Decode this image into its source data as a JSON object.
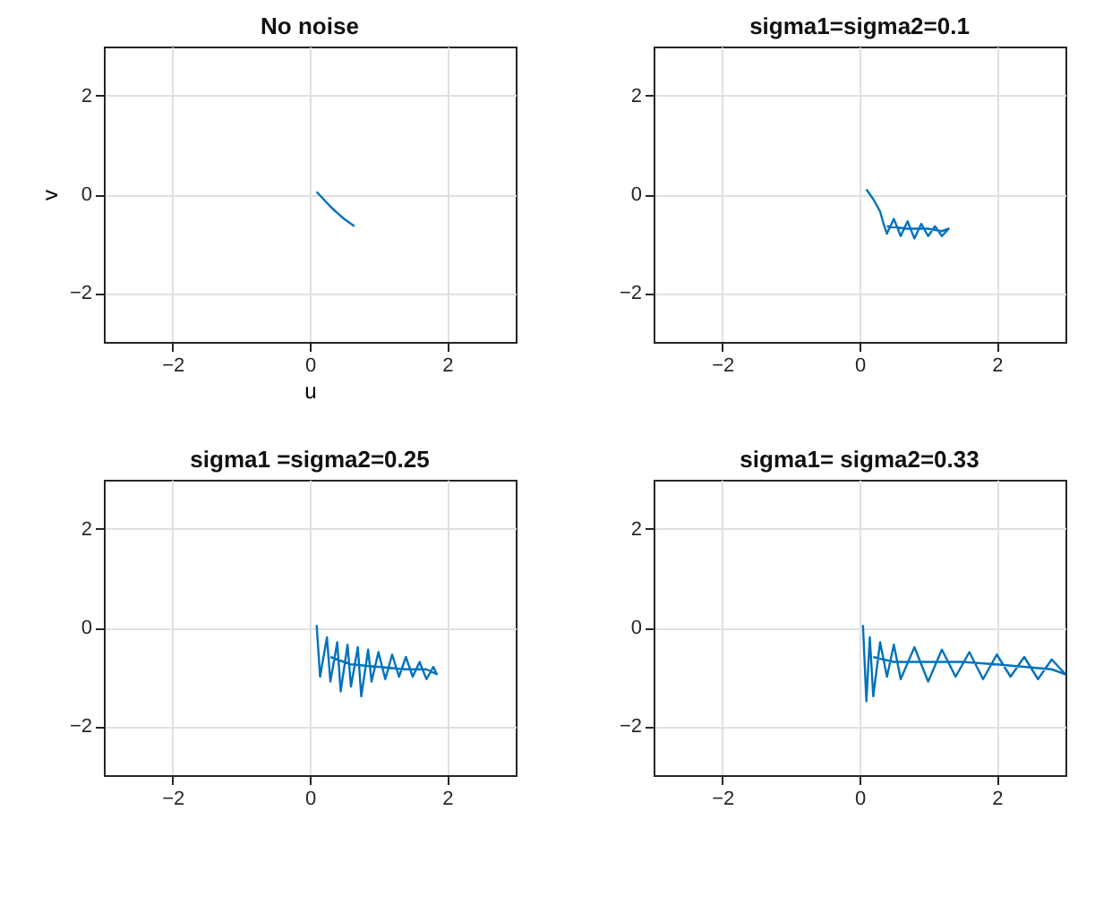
{
  "chart_data": [
    {
      "type": "line",
      "title": "No noise",
      "xlabel": "u",
      "ylabel": "v",
      "xlim": [
        -3,
        3
      ],
      "ylim": [
        -3,
        3
      ],
      "xticks": [
        -2,
        0,
        2
      ],
      "yticks": [
        -2,
        0,
        2
      ],
      "grid": true,
      "series": [
        {
          "color": "#0072bd",
          "x": [
            0.1,
            0.2,
            0.3,
            0.4,
            0.5,
            0.6,
            0.65
          ],
          "values": [
            0.05,
            -0.1,
            -0.25,
            -0.38,
            -0.5,
            -0.6,
            -0.65
          ]
        }
      ]
    },
    {
      "type": "line",
      "title": "sigma1=sigma2=0.1",
      "xlim": [
        -3,
        3
      ],
      "ylim": [
        -3,
        3
      ],
      "xticks": [
        -2,
        0,
        2
      ],
      "yticks": [
        -2,
        0,
        2
      ],
      "grid": true,
      "series": [
        {
          "color": "#0072bd",
          "x": [
            0.1,
            0.2,
            0.3,
            0.35,
            0.4,
            0.5,
            0.6,
            0.7,
            0.8,
            0.9,
            1.0,
            1.1,
            1.2,
            1.3,
            1.2,
            1.0,
            0.7,
            0.4
          ],
          "values": [
            0.1,
            -0.1,
            -0.35,
            -0.6,
            -0.8,
            -0.5,
            -0.85,
            -0.55,
            -0.9,
            -0.6,
            -0.85,
            -0.65,
            -0.85,
            -0.7,
            -0.75,
            -0.7,
            -0.7,
            -0.65
          ]
        }
      ]
    },
    {
      "type": "line",
      "title": "sigma1 =sigma2=0.25",
      "xlim": [
        -3,
        3
      ],
      "ylim": [
        -3,
        3
      ],
      "xticks": [
        -2,
        0,
        2
      ],
      "yticks": [
        -2,
        0,
        2
      ],
      "grid": true,
      "series": [
        {
          "color": "#0072bd",
          "x": [
            0.1,
            0.15,
            0.25,
            0.3,
            0.4,
            0.45,
            0.55,
            0.6,
            0.7,
            0.75,
            0.85,
            0.9,
            1.0,
            1.1,
            1.2,
            1.3,
            1.4,
            1.5,
            1.6,
            1.7,
            1.8,
            1.85,
            1.7,
            1.4,
            1.0,
            0.6,
            0.3
          ],
          "values": [
            0.05,
            -1.0,
            -0.2,
            -1.1,
            -0.3,
            -1.3,
            -0.35,
            -1.2,
            -0.4,
            -1.4,
            -0.45,
            -1.1,
            -0.5,
            -1.05,
            -0.55,
            -1.0,
            -0.6,
            -1.0,
            -0.7,
            -1.05,
            -0.8,
            -0.95,
            -0.85,
            -0.85,
            -0.8,
            -0.75,
            -0.6
          ]
        }
      ]
    },
    {
      "type": "line",
      "title": "sigma1= sigma2=0.33",
      "xlim": [
        -3,
        3
      ],
      "ylim": [
        -3,
        3
      ],
      "xticks": [
        -2,
        0,
        2
      ],
      "yticks": [
        -2,
        0,
        2
      ],
      "grid": true,
      "series": [
        {
          "color": "#0072bd",
          "x": [
            0.05,
            0.1,
            0.15,
            0.2,
            0.3,
            0.4,
            0.5,
            0.6,
            0.8,
            1.0,
            1.2,
            1.4,
            1.6,
            1.8,
            2.0,
            2.2,
            2.4,
            2.6,
            2.8,
            3.0,
            2.8,
            2.4,
            2.0,
            1.5,
            1.0,
            0.5,
            0.2
          ],
          "values": [
            0.05,
            -1.5,
            -0.2,
            -1.4,
            -0.3,
            -1.0,
            -0.35,
            -1.05,
            -0.4,
            -1.1,
            -0.45,
            -1.0,
            -0.5,
            -1.05,
            -0.55,
            -1.0,
            -0.6,
            -1.05,
            -0.65,
            -0.95,
            -0.85,
            -0.8,
            -0.75,
            -0.7,
            -0.7,
            -0.7,
            -0.6
          ]
        }
      ]
    }
  ]
}
